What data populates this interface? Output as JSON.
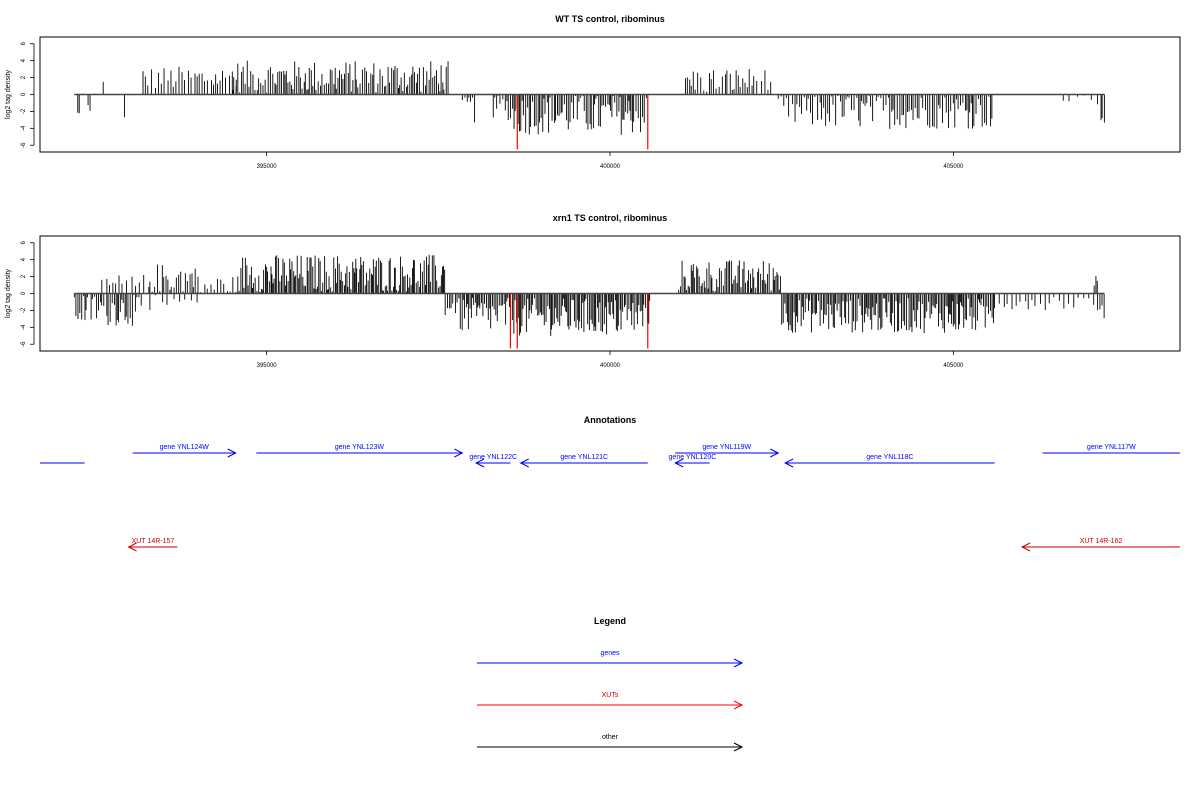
{
  "chart_data": [
    {
      "type": "bar",
      "title": "WT TS control, ribominus",
      "xlabel": "",
      "ylabel": "log2 tag density",
      "xlim": [
        391700,
        408300
      ],
      "ylim": [
        -6.8,
        6.8
      ],
      "xticks": [
        395000,
        400000,
        405000
      ],
      "xtick_labels": [
        "395000",
        "400000",
        "405000"
      ],
      "yticks": [
        -6,
        -4,
        -2,
        0,
        2,
        4,
        6
      ],
      "ytick_labels": [
        "-6",
        "-4",
        "-2",
        "0",
        "2",
        "4",
        "6"
      ],
      "baseline": [
        392200,
        407200
      ],
      "grid": false,
      "legend": "none",
      "colors": {
        "bars": "#000000",
        "highlight": "#ff0000"
      },
      "highlight_bars": [
        {
          "x": 398650,
          "y": -6.5
        },
        {
          "x": 400550,
          "y": -6.5
        }
      ],
      "segments": [
        {
          "from": 392250,
          "to": 392300,
          "mean": -2.5,
          "amp": 0.7,
          "step": 25
        },
        {
          "from": 392400,
          "to": 392450,
          "mean": -1.5,
          "amp": 0.4,
          "step": 25
        },
        {
          "from": 392620,
          "to": 392650,
          "mean": 1.3,
          "amp": 0.3,
          "step": 25
        },
        {
          "from": 392930,
          "to": 392950,
          "mean": -3.0,
          "amp": 0.4,
          "step": 25
        },
        {
          "from": 393200,
          "to": 394600,
          "mean": 1.9,
          "amp": 0.9,
          "step": 45
        },
        {
          "from": 394500,
          "to": 397650,
          "mean": 2.1,
          "amp": 1.2,
          "step": 25
        },
        {
          "from": 397850,
          "to": 398050,
          "mean": -1.5,
          "amp": 1.2,
          "step": 30
        },
        {
          "from": 398300,
          "to": 398550,
          "mean": -1.5,
          "amp": 1.0,
          "step": 30
        },
        {
          "from": 398550,
          "to": 400550,
          "mean": -2.4,
          "amp": 1.5,
          "step": 25
        },
        {
          "from": 401100,
          "to": 402350,
          "mean": 1.6,
          "amp": 1.0,
          "step": 35
        },
        {
          "from": 402450,
          "to": 405600,
          "mean": -2.0,
          "amp": 1.3,
          "step": 30
        },
        {
          "from": 406600,
          "to": 407150,
          "mean": -0.7,
          "amp": 0.4,
          "step": 110
        },
        {
          "from": 407150,
          "to": 407200,
          "mean": -3.0,
          "amp": 0.4,
          "step": 25
        }
      ]
    },
    {
      "type": "bar",
      "title": "xrn1 TS control, ribominus",
      "xlabel": "",
      "ylabel": "log2 tag density",
      "xlim": [
        391700,
        408300
      ],
      "ylim": [
        -6.8,
        6.8
      ],
      "xticks": [
        395000,
        400000,
        405000
      ],
      "xtick_labels": [
        "395000",
        "400000",
        "405000"
      ],
      "yticks": [
        -6,
        -4,
        -2,
        0,
        2,
        4,
        6
      ],
      "ytick_labels": [
        "-6",
        "-4",
        "-2",
        "0",
        "2",
        "4",
        "6"
      ],
      "baseline": [
        392200,
        407200
      ],
      "grid": false,
      "legend": "none",
      "colors": {
        "bars": "#000000",
        "highlight": "#ff0000"
      },
      "highlight_bars": [
        {
          "x": 398550,
          "y": -6.5
        },
        {
          "x": 398650,
          "y": -6.5
        },
        {
          "x": 400550,
          "y": -6.5
        }
      ],
      "segments": [
        {
          "from": 392200,
          "to": 393200,
          "mean": -1.8,
          "amp": 1.3,
          "step": 25
        },
        {
          "from": 392600,
          "to": 393300,
          "mean": 1.0,
          "amp": 0.8,
          "step": 60
        },
        {
          "from": 393300,
          "to": 394000,
          "mean": 1.8,
          "amp": 1.1,
          "step": 30
        },
        {
          "from": 393300,
          "to": 394000,
          "mean": -1.0,
          "amp": 0.6,
          "step": 80
        },
        {
          "from": 394000,
          "to": 394600,
          "mean": 0.9,
          "amp": 0.8,
          "step": 45
        },
        {
          "from": 394600,
          "to": 397600,
          "mean": 2.4,
          "amp": 1.4,
          "step": 20
        },
        {
          "from": 397600,
          "to": 397800,
          "mean": -1.5,
          "amp": 0.8,
          "step": 30
        },
        {
          "from": 397800,
          "to": 398600,
          "mean": -2.6,
          "amp": 1.3,
          "step": 22
        },
        {
          "from": 398600,
          "to": 400600,
          "mean": -2.8,
          "amp": 1.4,
          "step": 20
        },
        {
          "from": 401000,
          "to": 402500,
          "mean": 2.1,
          "amp": 1.2,
          "step": 22
        },
        {
          "from": 402500,
          "to": 405600,
          "mean": -2.6,
          "amp": 1.3,
          "step": 20
        },
        {
          "from": 405600,
          "to": 407100,
          "mean": -1.0,
          "amp": 0.6,
          "step": 60
        },
        {
          "from": 407050,
          "to": 407100,
          "mean": 1.5,
          "amp": 0.4,
          "step": 25
        },
        {
          "from": 407100,
          "to": 407200,
          "mean": -2.2,
          "amp": 0.5,
          "step": 25
        }
      ]
    }
  ],
  "annotations": {
    "title": "Annotations",
    "features": [
      {
        "label": "",
        "kind": "gene",
        "from": 391700,
        "to": 392350,
        "dir": "none",
        "lane": 1
      },
      {
        "label": "gene YNL124W",
        "kind": "gene",
        "from": 393050,
        "to": 394550,
        "dir": "right",
        "lane": 0
      },
      {
        "label": "gene YNL123W",
        "kind": "gene",
        "from": 394850,
        "to": 397850,
        "dir": "right",
        "lane": 0
      },
      {
        "label": "gene YNL122C",
        "kind": "gene",
        "from": 398050,
        "to": 398550,
        "dir": "left",
        "lane": 1
      },
      {
        "label": "gene YNL121C",
        "kind": "gene",
        "from": 398700,
        "to": 400550,
        "dir": "left",
        "lane": 1
      },
      {
        "label": "gene YNL120C",
        "kind": "gene",
        "from": 400950,
        "to": 401450,
        "dir": "left",
        "lane": 1
      },
      {
        "label": "gene YNL119W",
        "kind": "gene",
        "from": 400950,
        "to": 402450,
        "dir": "right",
        "lane": 0
      },
      {
        "label": "gene YNL118C",
        "kind": "gene",
        "from": 402550,
        "to": 405600,
        "dir": "left",
        "lane": 1
      },
      {
        "label": "gene YNL117W",
        "kind": "gene",
        "from": 406300,
        "to": 408300,
        "dir": "none",
        "lane": 0
      },
      {
        "label": "XUT 14R-157",
        "kind": "xut",
        "from": 392990,
        "to": 393700,
        "dir": "left",
        "lane": 2
      },
      {
        "label": "XUT 14R-162",
        "kind": "xut",
        "from": 406000,
        "to": 408300,
        "dir": "left",
        "lane": 2
      }
    ]
  },
  "legend": {
    "title": "Legend",
    "items": [
      {
        "label": "genes",
        "color": "#0000ff"
      },
      {
        "label": "XUTs",
        "color": "#ff0000"
      },
      {
        "label": "other",
        "color": "#000000"
      }
    ]
  },
  "colors": {
    "gene": "#0000ff",
    "xut": "#cc0000",
    "axis": "#000000"
  }
}
